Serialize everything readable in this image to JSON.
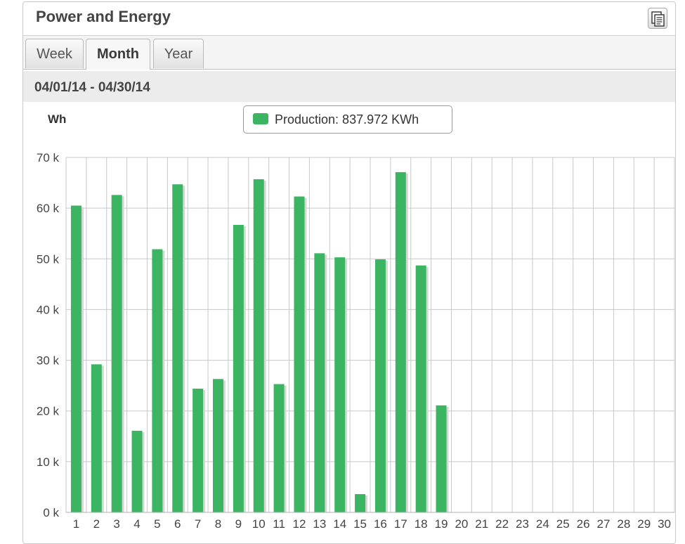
{
  "panel": {
    "title": "Power and Energy",
    "export_icon": "export-document-icon"
  },
  "tabs": [
    {
      "label": "Week",
      "active": false
    },
    {
      "label": "Month",
      "active": true
    },
    {
      "label": "Year",
      "active": false
    }
  ],
  "date_range": "04/01/14 - 04/30/14",
  "unit_label": "Wh",
  "legend": {
    "label": "Production: 837.972 KWh",
    "color": "#3cb563"
  },
  "chart_data": {
    "type": "bar",
    "categories": [
      "1",
      "2",
      "3",
      "4",
      "5",
      "6",
      "7",
      "8",
      "9",
      "10",
      "11",
      "12",
      "13",
      "14",
      "15",
      "16",
      "17",
      "18",
      "19",
      "20",
      "21",
      "22",
      "23",
      "24",
      "25",
      "26",
      "27",
      "28",
      "29",
      "30"
    ],
    "series": [
      {
        "name": "Production",
        "values": [
          60500,
          29200,
          62600,
          16100,
          51900,
          64700,
          24400,
          26300,
          56700,
          65700,
          25300,
          62300,
          51100,
          50300,
          3600,
          49900,
          67100,
          48700,
          21100,
          0,
          0,
          0,
          0,
          0,
          0,
          0,
          0,
          0,
          0,
          0
        ]
      }
    ],
    "ylim": [
      0,
      70000
    ],
    "yticks": [
      0,
      10000,
      20000,
      30000,
      40000,
      50000,
      60000,
      70000
    ],
    "ytick_labels": [
      "0 k",
      "10 k",
      "20 k",
      "30 k",
      "40 k",
      "50 k",
      "60 k",
      "70 k"
    ],
    "grid": true,
    "bar_color": "#3cb563"
  }
}
